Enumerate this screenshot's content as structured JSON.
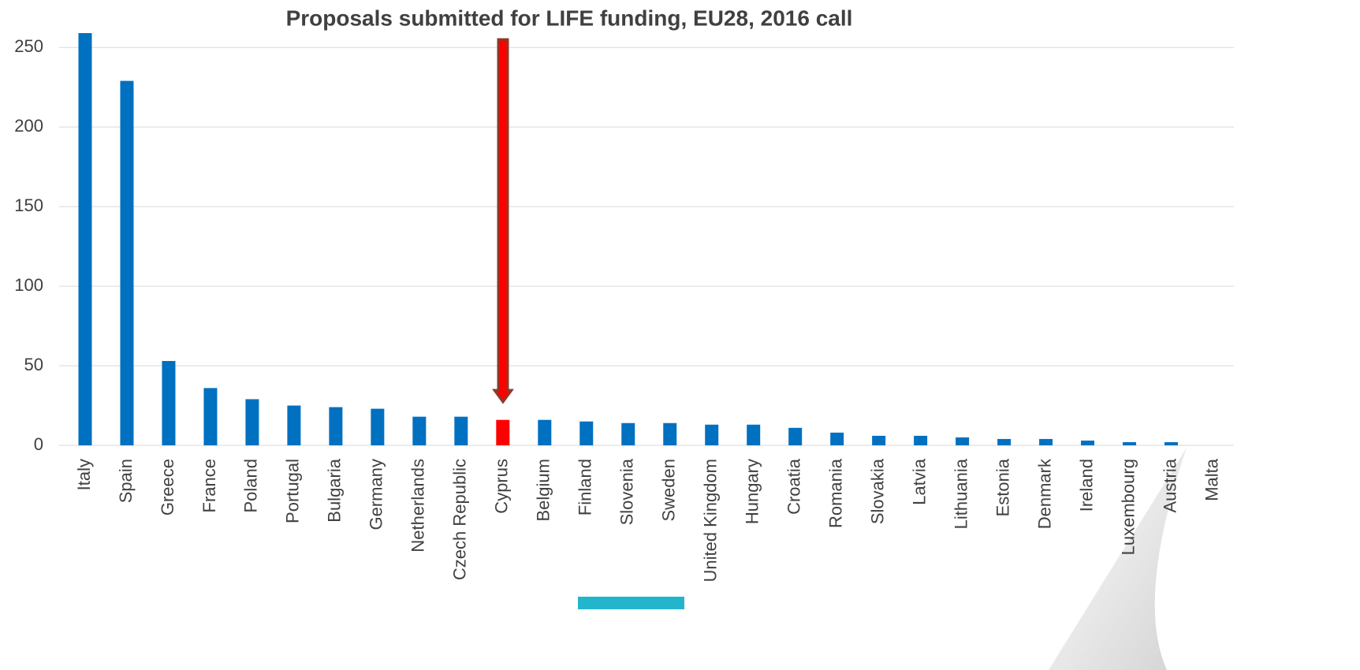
{
  "chart_data": {
    "type": "bar",
    "title": "Proposals submitted for LIFE funding, EU28, 2016 call",
    "categories": [
      "Italy",
      "Spain",
      "Greece",
      "France",
      "Poland",
      "Portugal",
      "Bulgaria",
      "Germany",
      "Netherlands",
      "Czech Republic",
      "Cyprus",
      "Belgium",
      "Finland",
      "Slovenia",
      "Sweden",
      "United Kingdom",
      "Hungary",
      "Croatia",
      "Romania",
      "Slovakia",
      "Latvia",
      "Lithuania",
      "Estonia",
      "Denmark",
      "Ireland",
      "Luxembourg",
      "Austria",
      "Malta"
    ],
    "values": [
      259,
      229,
      53,
      36,
      29,
      25,
      24,
      23,
      18,
      18,
      16,
      16,
      15,
      14,
      14,
      13,
      13,
      11,
      8,
      6,
      6,
      5,
      4,
      4,
      3,
      2,
      2,
      0
    ],
    "colors": [
      "#0070c0",
      "#0070c0",
      "#0070c0",
      "#0070c0",
      "#0070c0",
      "#0070c0",
      "#0070c0",
      "#0070c0",
      "#0070c0",
      "#0070c0",
      "#ff0000",
      "#0070c0",
      "#0070c0",
      "#0070c0",
      "#0070c0",
      "#0070c0",
      "#0070c0",
      "#0070c0",
      "#0070c0",
      "#0070c0",
      "#0070c0",
      "#0070c0",
      "#0070c0",
      "#0070c0",
      "#0070c0",
      "#0070c0",
      "#0070c0",
      "#0070c0"
    ],
    "ylim": [
      0,
      260
    ],
    "yticks": [
      0,
      50,
      100,
      150,
      200,
      250
    ],
    "grid": true
  }
}
